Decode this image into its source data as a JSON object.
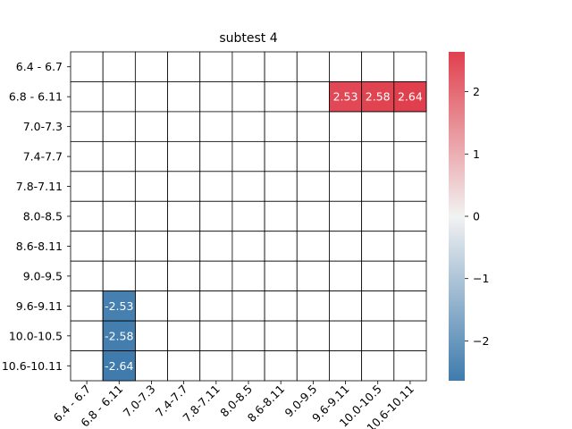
{
  "chart_data": {
    "type": "heatmap",
    "title": "subtest 4",
    "row_labels": [
      "6.4 - 6.7",
      "6.8 - 6.11",
      "7.0-7.3",
      "7.4-7.7",
      "7.8-7.11",
      "8.0-8.5",
      "8.6-8.11",
      "9.0-9.5",
      "9.6-9.11",
      "10.0-10.5",
      "10.6-10.11"
    ],
    "col_labels": [
      "6.4 - 6.7",
      "6.8 - 6.11",
      "7.0-7.3",
      "7.4-7.7",
      "7.8-7.11",
      "8.0-8.5",
      "8.6-8.11",
      "9.0-9.5",
      "9.6-9.11",
      "10.0-10.5",
      "10.6-10.11"
    ],
    "cells": [
      {
        "row": "6.8 - 6.11",
        "col": "9.6-9.11",
        "value": 2.53,
        "label": "2.53"
      },
      {
        "row": "6.8 - 6.11",
        "col": "10.0-10.5",
        "value": 2.58,
        "label": "2.58"
      },
      {
        "row": "6.8 - 6.11",
        "col": "10.6-10.11",
        "value": 2.64,
        "label": "2.64"
      },
      {
        "row": "9.6-9.11",
        "col": "6.8 - 6.11",
        "value": -2.53,
        "label": "-2.53"
      },
      {
        "row": "10.0-10.5",
        "col": "6.8 - 6.11",
        "value": -2.58,
        "label": "-2.58"
      },
      {
        "row": "10.6-10.11",
        "col": "6.8 - 6.11",
        "value": -2.64,
        "label": "-2.64"
      }
    ],
    "colorbar": {
      "range": [
        -2.64,
        2.64
      ],
      "ticks": [
        -2,
        -1,
        0,
        1,
        2
      ],
      "tick_labels": [
        "−2",
        "−1",
        "0",
        "1",
        "2"
      ],
      "colors": {
        "negative": "#3f7bad",
        "mid": "#f2f2f2",
        "positive": "#e0404d"
      }
    },
    "grid": true,
    "empty_cell_color": "#ffffff",
    "grid_color": "#000000"
  }
}
